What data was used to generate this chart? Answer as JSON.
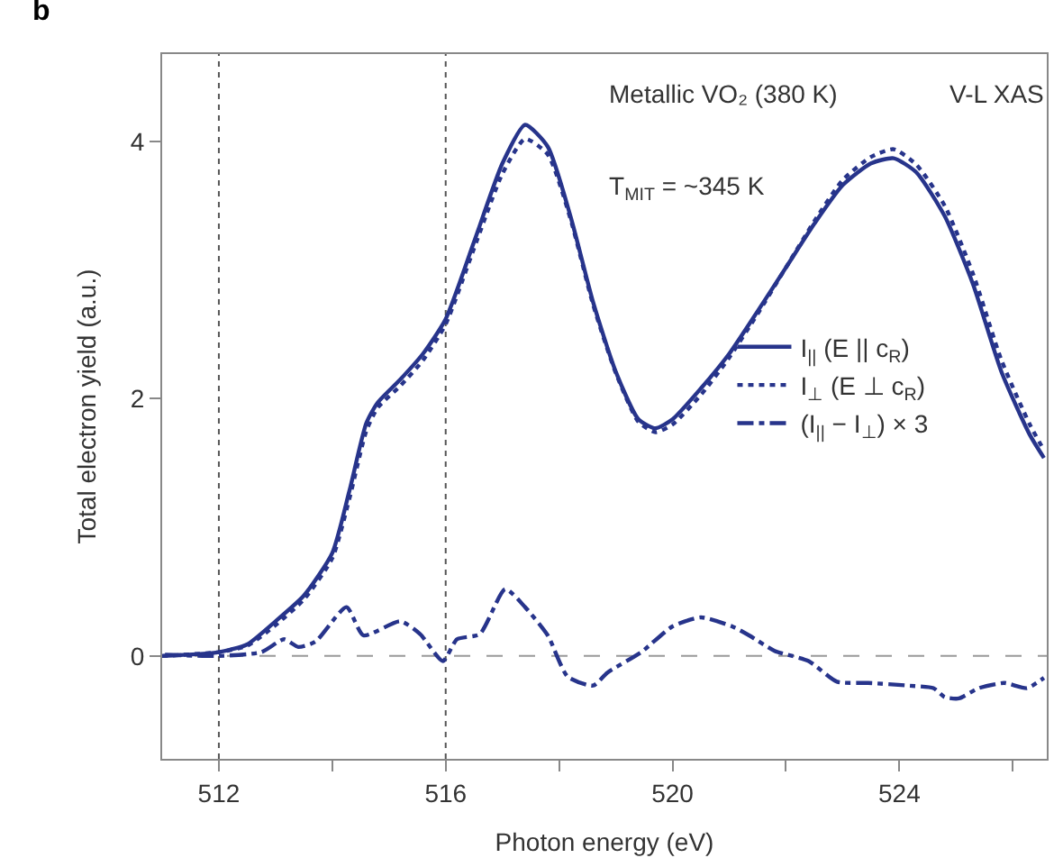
{
  "chart_data": {
    "type": "line",
    "xlabel": "Photon energy (eV)",
    "ylabel": "Total electron yield (a.u.)",
    "xlim": [
      511,
      526.6
    ],
    "ylim": [
      -0.8,
      4.68
    ],
    "xticks": [
      512,
      {
        "value": 514,
        "label": null
      },
      516,
      {
        "value": 518,
        "label": null
      },
      520,
      {
        "value": 522,
        "label": null
      },
      524,
      {
        "value": 526,
        "label": null
      }
    ],
    "yticks": [
      0,
      2,
      4
    ],
    "grid": false,
    "legend": "right",
    "marker": "none",
    "annotations": [
      "b",
      "Metallic VO₂ (380 K)",
      "V-L XAS",
      "T$_{MIT}$ = ~345 K"
    ],
    "ref_lines": [
      {
        "axis": "x",
        "value": 512,
        "label": null,
        "color": "#555555",
        "line_style": "dotted"
      },
      {
        "axis": "x",
        "value": 516,
        "label": null,
        "color": "#555555",
        "line_style": "dotted"
      },
      {
        "axis": "y",
        "value": 0,
        "label": null,
        "color": "#999999",
        "line_style": "dashed"
      }
    ],
    "series": [
      {
        "name": "I$_{||}$ (E || c$_{R}$)",
        "color": "#27348b",
        "line_style": "solid",
        "x": [
          511,
          512,
          512.5,
          513,
          513.5,
          514,
          514.3,
          514.6,
          514.8,
          515.2,
          515.6,
          516,
          516.5,
          517,
          517.4,
          517.8,
          518.2,
          518.6,
          519,
          519.4,
          519.7,
          520,
          520.5,
          521,
          521.5,
          522,
          522.5,
          523,
          523.5,
          523.9,
          524.3,
          524.8,
          525.3,
          525.8,
          526.3,
          526.55
        ],
        "values": [
          0,
          0.03,
          0.09,
          0.27,
          0.47,
          0.8,
          1.28,
          1.81,
          1.97,
          2.15,
          2.35,
          2.62,
          3.22,
          3.83,
          4.13,
          3.96,
          3.42,
          2.75,
          2.21,
          1.84,
          1.77,
          1.84,
          2.08,
          2.35,
          2.68,
          3.02,
          3.36,
          3.66,
          3.83,
          3.87,
          3.76,
          3.42,
          2.89,
          2.21,
          1.72,
          1.54
        ]
      },
      {
        "name": "I$_{⊥}$ (E ⊥ c$_{R}$)",
        "color": "#27348b",
        "line_style": "dotted",
        "x": [
          511,
          512,
          512.5,
          513,
          513.5,
          514,
          514.3,
          514.6,
          514.8,
          515.2,
          515.6,
          516,
          516.5,
          517,
          517.4,
          517.8,
          518.2,
          518.6,
          519,
          519.4,
          519.7,
          520,
          520.5,
          521,
          521.5,
          522,
          522.5,
          523,
          523.5,
          523.9,
          524.3,
          524.8,
          525.3,
          525.8,
          526.3,
          526.55
        ],
        "values": [
          0,
          0.03,
          0.08,
          0.24,
          0.44,
          0.76,
          1.22,
          1.75,
          1.93,
          2.1,
          2.3,
          2.58,
          3.17,
          3.75,
          4.02,
          3.9,
          3.4,
          2.73,
          2.2,
          1.82,
          1.74,
          1.8,
          2.03,
          2.32,
          2.66,
          3.02,
          3.38,
          3.7,
          3.88,
          3.94,
          3.82,
          3.5,
          2.97,
          2.3,
          1.8,
          1.6
        ]
      },
      {
        "name": "(I$_{||}$ − I$_{⊥}$) × 3",
        "color": "#27348b",
        "line_style": "dashdot",
        "x": [
          511.05,
          512,
          512.75,
          513.15,
          513.4,
          513.7,
          514.25,
          514.55,
          515.2,
          515.55,
          515.95,
          516.2,
          516.6,
          517.05,
          517.4,
          517.8,
          518.15,
          518.6,
          518.85,
          519.45,
          520,
          520.5,
          521.05,
          521.35,
          521.8,
          522.4,
          522.9,
          523.45,
          524.15,
          524.6,
          524.8,
          525.05,
          525.4,
          525.85,
          526.25,
          526.55
        ],
        "values": [
          0.01,
          0,
          0.03,
          0.13,
          0.07,
          0.11,
          0.38,
          0.16,
          0.27,
          0.17,
          -0.04,
          0.13,
          0.17,
          0.52,
          0.38,
          0.16,
          -0.16,
          -0.23,
          -0.13,
          0.03,
          0.23,
          0.3,
          0.23,
          0.16,
          0.04,
          -0.04,
          -0.2,
          -0.21,
          -0.23,
          -0.25,
          -0.32,
          -0.33,
          -0.25,
          -0.21,
          -0.25,
          -0.17
        ]
      }
    ]
  }
}
